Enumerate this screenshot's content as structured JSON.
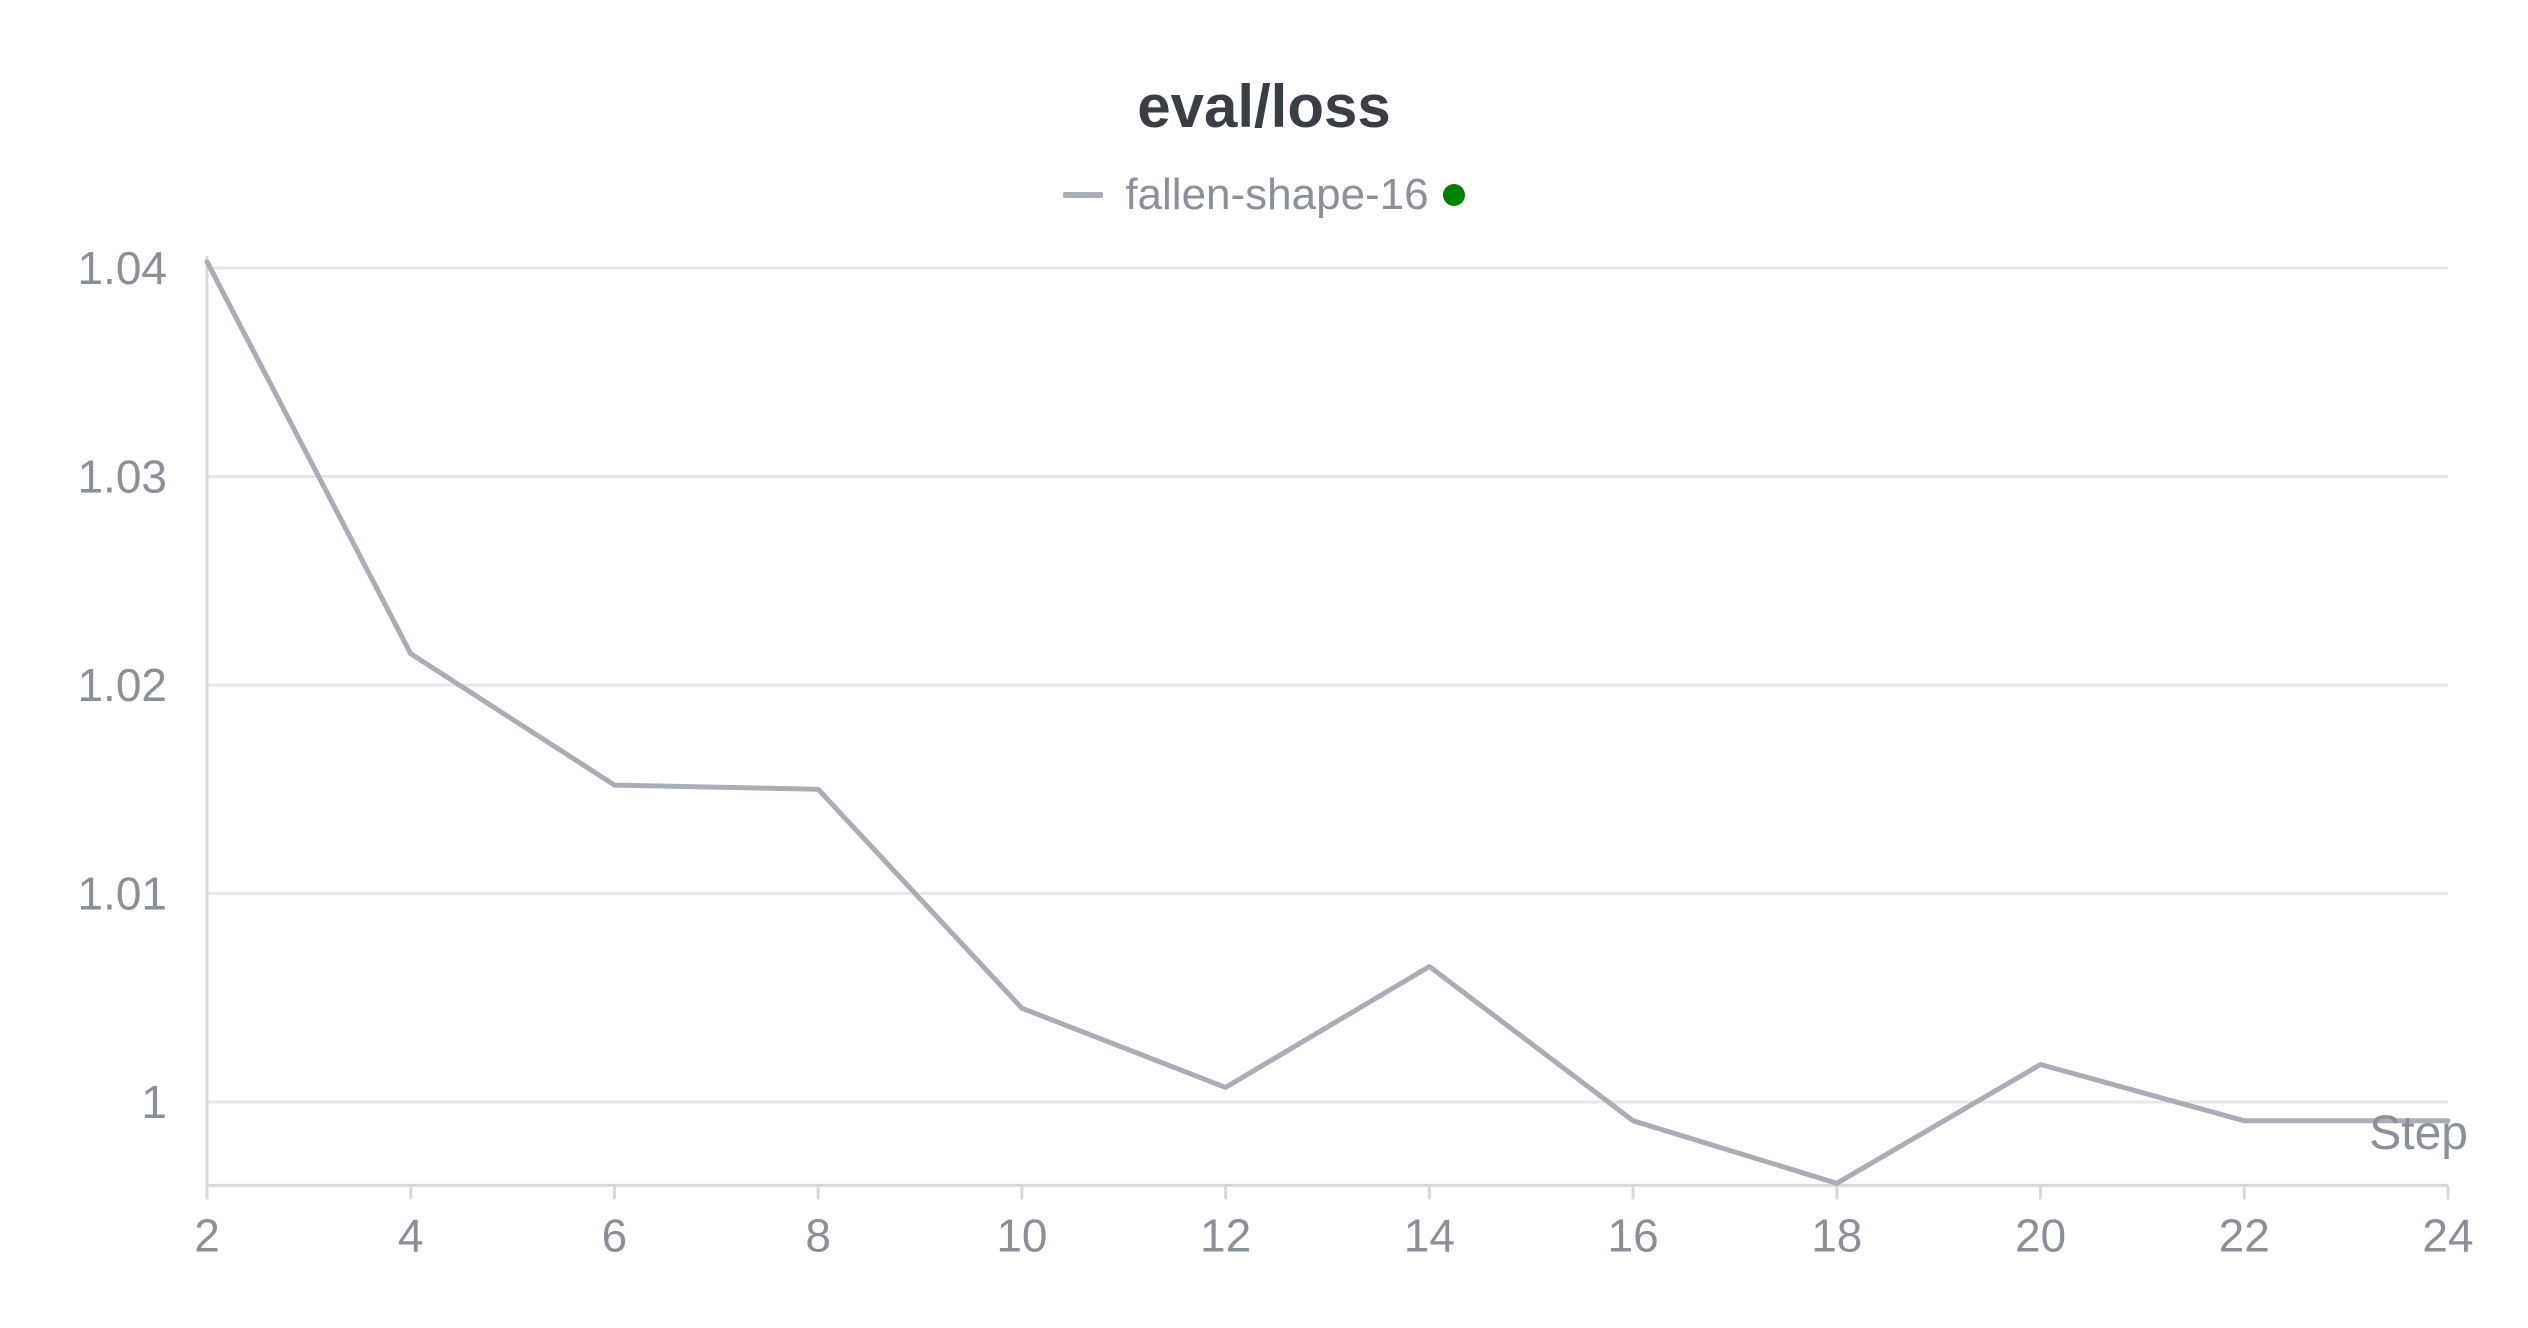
{
  "chart_data": {
    "type": "line",
    "title": "eval/loss",
    "xlabel": "Step",
    "ylabel": "",
    "x": [
      2,
      4,
      6,
      8,
      10,
      12,
      14,
      16,
      18,
      20,
      22,
      24
    ],
    "series": [
      {
        "name": "fallen-shape-16",
        "values": [
          1.0403,
          1.0215,
          1.0152,
          1.015,
          1.0045,
          1.0007,
          1.0065,
          0.9991,
          0.9961,
          1.0018,
          0.9991,
          0.9991
        ],
        "color": "#a9aeb4"
      }
    ],
    "x_ticks": [
      "2",
      "4",
      "6",
      "8",
      "10",
      "12",
      "14",
      "16",
      "18",
      "20",
      "22",
      "24"
    ],
    "y_ticks": [
      "1",
      "1.01",
      "1.02",
      "1.03",
      "1.04"
    ],
    "xlim": [
      2,
      24
    ],
    "ylim": [
      0.996,
      1.04
    ],
    "grid": true,
    "legend_position": "top-center",
    "legend_status_color": "#008000"
  }
}
